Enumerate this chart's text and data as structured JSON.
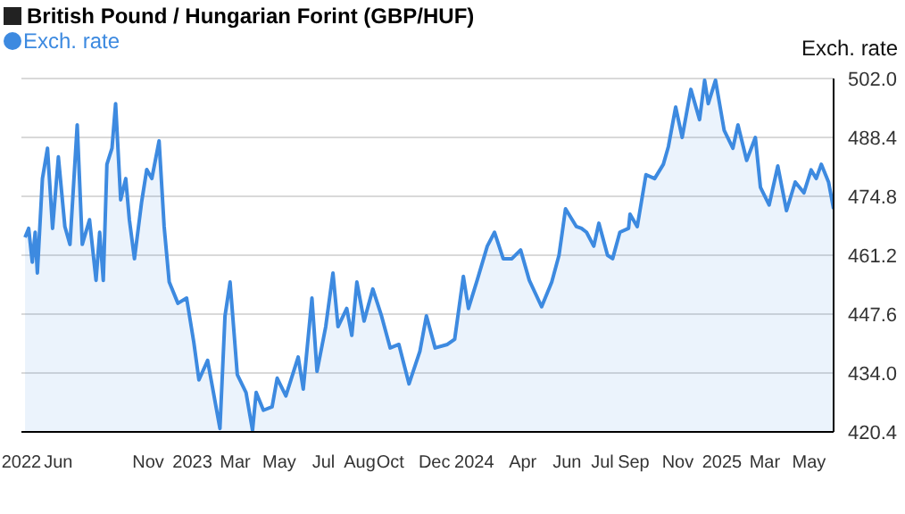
{
  "chart_data": {
    "type": "area",
    "title": "British Pound / Hungarian Forint (GBP/HUF)",
    "ylabel": "Exch. rate",
    "legend": "top left",
    "grid": "y",
    "xlim": [
      "2022-05-10",
      "2025-06-04"
    ],
    "xticks": [
      {
        "value": "2022-05-10",
        "label": "2022"
      },
      {
        "value": "2022-06-30",
        "label": "Jun"
      },
      {
        "value": "2022-11-01",
        "label": "Nov"
      },
      {
        "value": "2023-01-01",
        "label": "2023"
      },
      {
        "value": "2023-03-01",
        "label": "Mar"
      },
      {
        "value": "2023-05-01",
        "label": "May"
      },
      {
        "value": "2023-07-01",
        "label": "Jul"
      },
      {
        "value": "2023-08-20",
        "label": "Aug"
      },
      {
        "value": "2023-10-01",
        "label": "Oct"
      },
      {
        "value": "2023-12-01",
        "label": "Dec"
      },
      {
        "value": "2024-01-25",
        "label": "2024"
      },
      {
        "value": "2024-04-01",
        "label": "Apr"
      },
      {
        "value": "2024-06-01",
        "label": "Jun"
      },
      {
        "value": "2024-07-20",
        "label": "Jul"
      },
      {
        "value": "2024-09-01",
        "label": "Sep"
      },
      {
        "value": "2024-11-01",
        "label": "Nov"
      },
      {
        "value": "2025-01-01",
        "label": "2025"
      },
      {
        "value": "2025-03-01",
        "label": "Mar"
      },
      {
        "value": "2025-05-01",
        "label": "May"
      }
    ],
    "ylim": [
      420.4,
      502.0
    ],
    "yticks": [
      {
        "value": 420.4,
        "label": "420.4"
      },
      {
        "value": 434.0,
        "label": "434.0"
      },
      {
        "value": 447.6,
        "label": "447.6"
      },
      {
        "value": 461.2,
        "label": "461.2"
      },
      {
        "value": 474.8,
        "label": "474.8"
      },
      {
        "value": 488.4,
        "label": "488.4"
      },
      {
        "value": 502.0,
        "label": "502.0"
      }
    ],
    "x": [
      "2022-05-15",
      "2022-05-20",
      "2022-05-25",
      "2022-05-29",
      "2022-06-01",
      "2022-06-08",
      "2022-06-15",
      "2022-06-22",
      "2022-06-30",
      "2022-07-09",
      "2022-07-16",
      "2022-07-26",
      "2022-08-02",
      "2022-08-12",
      "2022-08-21",
      "2022-08-26",
      "2022-08-31",
      "2022-09-05",
      "2022-09-12",
      "2022-09-17",
      "2022-09-24",
      "2022-10-01",
      "2022-10-06",
      "2022-10-13",
      "2022-10-23",
      "2022-10-30",
      "2022-11-06",
      "2022-11-16",
      "2022-11-23",
      "2022-11-30",
      "2022-12-12",
      "2022-12-24",
      "2023-01-03",
      "2023-01-10",
      "2023-01-22",
      "2023-02-08",
      "2023-02-15",
      "2023-02-22",
      "2023-03-04",
      "2023-03-16",
      "2023-03-25",
      "2023-03-30",
      "2023-04-09",
      "2023-04-21",
      "2023-04-28",
      "2023-05-10",
      "2023-05-27",
      "2023-06-03",
      "2023-06-15",
      "2023-06-22",
      "2023-07-04",
      "2023-07-14",
      "2023-07-21",
      "2023-08-02",
      "2023-08-09",
      "2023-08-16",
      "2023-08-26",
      "2023-09-07",
      "2023-09-19",
      "2023-10-01",
      "2023-10-13",
      "2023-10-27",
      "2023-11-11",
      "2023-11-20",
      "2023-12-02",
      "2023-12-19",
      "2023-12-29",
      "2024-01-10",
      "2024-01-17",
      "2024-01-29",
      "2024-02-12",
      "2024-02-22",
      "2024-03-05",
      "2024-03-17",
      "2024-03-29",
      "2024-04-10",
      "2024-04-27",
      "2024-05-11",
      "2024-05-21",
      "2024-05-30",
      "2024-06-14",
      "2024-06-21",
      "2024-06-28",
      "2024-07-08",
      "2024-07-15",
      "2024-07-27",
      "2024-08-03",
      "2024-08-13",
      "2024-08-25",
      "2024-08-27",
      "2024-09-06",
      "2024-09-18",
      "2024-09-30",
      "2024-10-12",
      "2024-10-19",
      "2024-10-29",
      "2024-11-07",
      "2024-11-19",
      "2024-12-01",
      "2024-12-08",
      "2024-12-13",
      "2024-12-23",
      "2025-01-04",
      "2025-01-16",
      "2025-01-23",
      "2025-02-04",
      "2025-02-16",
      "2025-02-23",
      "2025-03-07",
      "2025-03-19",
      "2025-03-31",
      "2025-04-12",
      "2025-04-24",
      "2025-05-04",
      "2025-05-11",
      "2025-05-18",
      "2025-05-28",
      "2025-06-04"
    ],
    "series": [
      {
        "name": "Exch. rate",
        "color": "#3d8ae0",
        "values": [
          465.3,
          467.4,
          459.6,
          466.5,
          457.1,
          478.9,
          485.9,
          467.4,
          483.9,
          467.8,
          463.7,
          491.3,
          463.7,
          469.4,
          455.4,
          466.5,
          455.4,
          482.2,
          485.9,
          496.2,
          474.0,
          478.9,
          469.4,
          460.4,
          473.6,
          481.0,
          478.9,
          487.6,
          467.8,
          455.0,
          450.1,
          451.3,
          441.0,
          432.4,
          436.9,
          421.2,
          447.2,
          455.0,
          433.6,
          429.5,
          420.8,
          429.5,
          425.4,
          426.2,
          432.8,
          428.7,
          437.7,
          430.3,
          451.3,
          434.4,
          444.7,
          457.1,
          444.7,
          448.9,
          442.7,
          455.0,
          446.0,
          453.4,
          447.2,
          439.8,
          440.6,
          431.5,
          439.0,
          447.2,
          439.8,
          440.6,
          441.8,
          456.3,
          448.9,
          455.4,
          463.3,
          466.5,
          460.4,
          460.4,
          462.4,
          455.4,
          449.3,
          455.0,
          461.2,
          471.9,
          467.8,
          467.4,
          466.5,
          463.3,
          468.6,
          461.2,
          460.4,
          466.5,
          467.4,
          470.7,
          467.8,
          479.8,
          478.9,
          482.2,
          486.3,
          495.4,
          488.4,
          499.5,
          492.5,
          501.6,
          496.2,
          501.6,
          490.0,
          485.9,
          491.3,
          483.1,
          488.4,
          476.9,
          472.8,
          481.8,
          471.5,
          478.1,
          475.6,
          480.9,
          478.9,
          482.2,
          478.1,
          471.9
        ]
      }
    ]
  }
}
